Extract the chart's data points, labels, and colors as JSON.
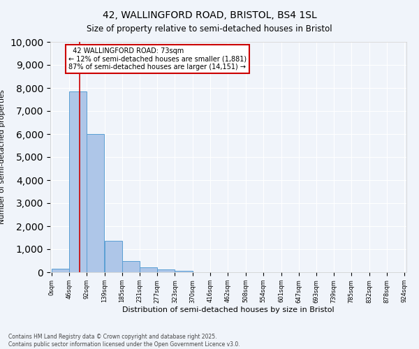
{
  "title_line1": "42, WALLINGFORD ROAD, BRISTOL, BS4 1SL",
  "title_line2": "Size of property relative to semi-detached houses in Bristol",
  "xlabel": "Distribution of semi-detached houses by size in Bristol",
  "ylabel": "Number of semi-detached properties",
  "property_size": 73,
  "property_label": "42 WALLINGFORD ROAD: 73sqm",
  "pct_smaller": 12,
  "pct_larger": 87,
  "n_smaller": 1881,
  "n_larger": 14151,
  "bar_left_edges": [
    0,
    46,
    92,
    139,
    185,
    231,
    277,
    323,
    370,
    416,
    462,
    508,
    554,
    601,
    647,
    693,
    739,
    785,
    832,
    878
  ],
  "bar_heights": [
    150,
    7850,
    6000,
    1350,
    500,
    200,
    130,
    50,
    0,
    0,
    0,
    0,
    0,
    0,
    0,
    0,
    0,
    0,
    0,
    0
  ],
  "bin_width": 46,
  "tick_labels": [
    "0sqm",
    "46sqm",
    "92sqm",
    "139sqm",
    "185sqm",
    "231sqm",
    "277sqm",
    "323sqm",
    "370sqm",
    "416sqm",
    "462sqm",
    "508sqm",
    "554sqm",
    "601sqm",
    "647sqm",
    "693sqm",
    "739sqm",
    "785sqm",
    "832sqm",
    "878sqm",
    "924sqm"
  ],
  "bar_color": "#aec6e8",
  "bar_edge_color": "#5a9fd4",
  "vline_color": "#cc0000",
  "annotation_box_color": "#cc0000",
  "background_color": "#f0f4fa",
  "plot_background": "#f0f4fa",
  "grid_color": "#ffffff",
  "ylim": [
    0,
    10000
  ],
  "yticks": [
    0,
    1000,
    2000,
    3000,
    4000,
    5000,
    6000,
    7000,
    8000,
    9000,
    10000
  ],
  "footnote_line1": "Contains HM Land Registry data © Crown copyright and database right 2025.",
  "footnote_line2": "Contains public sector information licensed under the Open Government Licence v3.0."
}
